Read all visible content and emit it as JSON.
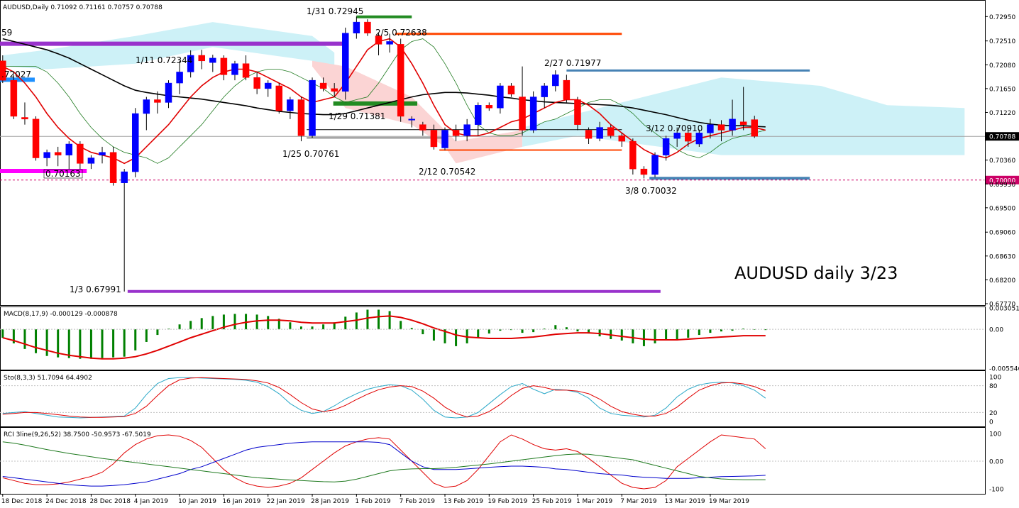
{
  "chart_data": {
    "type": "candlestick",
    "symbol": "AUDUSD",
    "timeframe": "Daily",
    "header": "AUDUSD,Daily  0.71092 0.71161 0.70757 0.70788",
    "watermark": "AUDUSD daily 3/23",
    "current_price": "0.70788",
    "ylim": [
      0.6777,
      0.7321
    ],
    "y_ticks": [
      "0.72950",
      "0.72510",
      "0.72080",
      "0.71650",
      "0.71220",
      "0.70788",
      "0.70360",
      "0.70000",
      "0.69930",
      "0.69500",
      "0.69060",
      "0.68630",
      "0.68200",
      "0.67770"
    ],
    "y_tick_values": [
      0.7295,
      0.7251,
      0.7208,
      0.7165,
      0.7122,
      0.70788,
      0.7036,
      0.7,
      0.6993,
      0.695,
      0.6906,
      0.6863,
      0.682,
      0.6777
    ],
    "x_labels": [
      "18 Dec 2018",
      "24 Dec 2018",
      "28 Dec 2018",
      "4 Jan 2019",
      "10 Jan 2019",
      "16 Jan 2019",
      "22 Jan 2019",
      "28 Jan 2019",
      "1 Feb 2019",
      "7 Feb 2019",
      "13 Feb 2019",
      "19 Feb 2019",
      "25 Feb 2019",
      "1 Mar 2019",
      "7 Mar 2019",
      "13 Mar 2019",
      "19 Mar 2019"
    ],
    "candles": [
      [
        0.7215,
        0.7225,
        0.7175,
        0.718
      ],
      [
        0.718,
        0.719,
        0.711,
        0.7115
      ],
      [
        0.7113,
        0.714,
        0.71,
        0.711
      ],
      [
        0.711,
        0.7115,
        0.7035,
        0.704
      ],
      [
        0.704,
        0.7055,
        0.7025,
        0.705
      ],
      [
        0.705,
        0.706,
        0.7025,
        0.7045
      ],
      [
        0.7045,
        0.707,
        0.702,
        0.7065
      ],
      [
        0.7065,
        0.707,
        0.702,
        0.703
      ],
      [
        0.703,
        0.7045,
        0.702,
        0.704
      ],
      [
        0.7045,
        0.706,
        0.703,
        0.705
      ],
      [
        0.705,
        0.706,
        0.699,
        0.6995
      ],
      [
        0.6995,
        0.702,
        0.6799,
        0.7015
      ],
      [
        0.7015,
        0.713,
        0.7005,
        0.712
      ],
      [
        0.712,
        0.715,
        0.709,
        0.7145
      ],
      [
        0.7145,
        0.716,
        0.712,
        0.714
      ],
      [
        0.714,
        0.718,
        0.713,
        0.7175
      ],
      [
        0.7175,
        0.7215,
        0.7155,
        0.7195
      ],
      [
        0.7195,
        0.7234,
        0.7185,
        0.7225
      ],
      [
        0.7225,
        0.7235,
        0.72,
        0.7215
      ],
      [
        0.7212,
        0.7226,
        0.7195,
        0.722
      ],
      [
        0.722,
        0.7225,
        0.718,
        0.719
      ],
      [
        0.719,
        0.7215,
        0.718,
        0.721
      ],
      [
        0.721,
        0.7225,
        0.718,
        0.7185
      ],
      [
        0.7185,
        0.7195,
        0.7155,
        0.7165
      ],
      [
        0.7165,
        0.718,
        0.715,
        0.7175
      ],
      [
        0.717,
        0.7175,
        0.712,
        0.7125
      ],
      [
        0.7125,
        0.715,
        0.711,
        0.7145
      ],
      [
        0.7145,
        0.715,
        0.707,
        0.708
      ],
      [
        0.708,
        0.7185,
        0.7076,
        0.718
      ],
      [
        0.7175,
        0.7185,
        0.716,
        0.7165
      ],
      [
        0.7165,
        0.7175,
        0.715,
        0.716
      ],
      [
        0.716,
        0.7275,
        0.7145,
        0.7265
      ],
      [
        0.7265,
        0.7295,
        0.7255,
        0.7285
      ],
      [
        0.7285,
        0.729,
        0.726,
        0.7265
      ],
      [
        0.726,
        0.7265,
        0.7225,
        0.7245
      ],
      [
        0.7245,
        0.7264,
        0.723,
        0.725
      ],
      [
        0.7245,
        0.7255,
        0.7105,
        0.7115
      ],
      [
        0.711,
        0.7115,
        0.7095,
        0.711
      ],
      [
        0.71,
        0.7105,
        0.708,
        0.709
      ],
      [
        0.709,
        0.71,
        0.7055,
        0.706
      ],
      [
        0.7058,
        0.7095,
        0.7054,
        0.709
      ],
      [
        0.709,
        0.71,
        0.707,
        0.708
      ],
      [
        0.708,
        0.711,
        0.707,
        0.71
      ],
      [
        0.71,
        0.714,
        0.708,
        0.7135
      ],
      [
        0.7135,
        0.714,
        0.7125,
        0.713
      ],
      [
        0.713,
        0.7175,
        0.712,
        0.717
      ],
      [
        0.717,
        0.7175,
        0.715,
        0.7155
      ],
      [
        0.715,
        0.7205,
        0.708,
        0.709
      ],
      [
        0.709,
        0.716,
        0.7085,
        0.715
      ],
      [
        0.715,
        0.7175,
        0.713,
        0.717
      ],
      [
        0.717,
        0.7198,
        0.716,
        0.719
      ],
      [
        0.718,
        0.719,
        0.714,
        0.7145
      ],
      [
        0.7145,
        0.715,
        0.709,
        0.71
      ],
      [
        0.709,
        0.7095,
        0.7065,
        0.7075
      ],
      [
        0.7075,
        0.7105,
        0.707,
        0.7095
      ],
      [
        0.7095,
        0.71,
        0.7075,
        0.708
      ],
      [
        0.708,
        0.7085,
        0.706,
        0.707
      ],
      [
        0.707,
        0.7075,
        0.701,
        0.702
      ],
      [
        0.702,
        0.7025,
        0.7003,
        0.701
      ],
      [
        0.701,
        0.705,
        0.7005,
        0.7045
      ],
      [
        0.7045,
        0.708,
        0.7035,
        0.7075
      ],
      [
        0.7075,
        0.7095,
        0.706,
        0.7085
      ],
      [
        0.7085,
        0.7095,
        0.706,
        0.707
      ],
      [
        0.7065,
        0.7091,
        0.706,
        0.7085
      ],
      [
        0.7085,
        0.711,
        0.7075,
        0.71
      ],
      [
        0.71,
        0.7108,
        0.707,
        0.709
      ],
      [
        0.709,
        0.7145,
        0.708,
        0.711
      ],
      [
        0.7105,
        0.7168,
        0.709,
        0.71
      ],
      [
        0.7109,
        0.7116,
        0.7076,
        0.7079
      ]
    ],
    "annotations": [
      {
        "text": "1/31 0.72945",
        "price": 0.72945
      },
      {
        "text": "2/5 0.72638",
        "price": 0.72638
      },
      {
        "text": "1/11 0.72344",
        "price": 0.72344
      },
      {
        "text": ".72027",
        "price": 0.72027
      },
      {
        "text": "2/27 0.71977",
        "price": 0.71977
      },
      {
        "text": "1/29 0.71381",
        "price": 0.71381
      },
      {
        "text": "3/12 0.70910",
        "price": 0.7091
      },
      {
        "text": "1/25 0.70761",
        "price": 0.70761
      },
      {
        "text": "0.70163",
        "price": 0.70163
      },
      {
        "text": "2/12 0.70542",
        "price": 0.70542
      },
      {
        "text": "3/8 0.70032",
        "price": 0.70032
      },
      {
        "text": "1/3 0.67991",
        "price": 0.67991
      },
      {
        "text": "59",
        "price": 0.7246
      }
    ],
    "levels": [
      {
        "price": 0.72945,
        "color": "#228b22"
      },
      {
        "price": 0.72638,
        "color": "#ff4500"
      },
      {
        "price": 0.7246,
        "color": "#9932cc"
      },
      {
        "price": 0.71977,
        "color": "#4682b4"
      },
      {
        "price": 0.7181,
        "color": "#1e90ff"
      },
      {
        "price": 0.71381,
        "color": "#228b22"
      },
      {
        "price": 0.7091,
        "color": "#000000"
      },
      {
        "price": 0.70761,
        "color": "#000000"
      },
      {
        "price": 0.70542,
        "color": "#ff4500"
      },
      {
        "price": 0.70163,
        "color": "#ff00ff"
      },
      {
        "price": 0.70032,
        "color": "#4682b4"
      },
      {
        "price": 0.67991,
        "color": "#9932cc"
      },
      {
        "price": 0.7,
        "color": "#cc0066"
      }
    ],
    "ma_fast": [
      0.7205,
      0.7195,
      0.7175,
      0.715,
      0.712,
      0.7095,
      0.7075,
      0.706,
      0.705,
      0.7045,
      0.704,
      0.703,
      0.704,
      0.706,
      0.708,
      0.71,
      0.7125,
      0.715,
      0.717,
      0.7185,
      0.7195,
      0.72,
      0.72,
      0.7195,
      0.7185,
      0.7175,
      0.7165,
      0.715,
      0.714,
      0.7145,
      0.715,
      0.7175,
      0.7205,
      0.7235,
      0.725,
      0.7255,
      0.724,
      0.721,
      0.7175,
      0.7135,
      0.71,
      0.7085,
      0.708,
      0.708,
      0.7085,
      0.7095,
      0.7105,
      0.711,
      0.712,
      0.713,
      0.714,
      0.7145,
      0.7145,
      0.7135,
      0.712,
      0.71,
      0.7085,
      0.707,
      0.7055,
      0.7045,
      0.704,
      0.705,
      0.7065,
      0.7075,
      0.708,
      0.7085,
      0.709,
      0.7095,
      0.7095,
      0.709
    ],
    "ma_slow": [
      0.7255,
      0.725,
      0.7245,
      0.724,
      0.7235,
      0.7228,
      0.722,
      0.721,
      0.72,
      0.719,
      0.718,
      0.717,
      0.7162,
      0.7158,
      0.7155,
      0.7152,
      0.715,
      0.7148,
      0.7146,
      0.7143,
      0.714,
      0.7137,
      0.7134,
      0.713,
      0.7127,
      0.7124,
      0.7122,
      0.712,
      0.7119,
      0.7118,
      0.7118,
      0.712,
      0.7125,
      0.713,
      0.7135,
      0.714,
      0.7145,
      0.715,
      0.7154,
      0.7156,
      0.7158,
      0.7158,
      0.7157,
      0.7155,
      0.7153,
      0.715,
      0.7148,
      0.7145,
      0.7143,
      0.7141,
      0.714,
      0.7139,
      0.7138,
      0.7137,
      0.7136,
      0.7135,
      0.7133,
      0.713,
      0.7126,
      0.7122,
      0.7118,
      0.7113,
      0.7108,
      0.7104,
      0.7101,
      0.7099,
      0.7098,
      0.7098,
      0.7097,
      0.7096
    ],
    "macd": {
      "label": "MACD(8,17,9) -0.000129 -0.000878",
      "ylim": [
        -0.005546,
        0.003051
      ],
      "y_ticks": [
        "0.003051",
        "0.00",
        "-0.005546"
      ],
      "y_tick_values": [
        0.003051,
        0.0,
        -0.005546
      ],
      "histogram": [
        -0.0012,
        -0.002,
        -0.0028,
        -0.0034,
        -0.0038,
        -0.004,
        -0.0041,
        -0.0042,
        -0.0042,
        -0.0041,
        -0.004,
        -0.0039,
        -0.003,
        -0.0018,
        -0.0008,
        0.0001,
        0.0007,
        0.0012,
        0.0016,
        0.0019,
        0.0021,
        0.0022,
        0.0022,
        0.0021,
        0.0019,
        0.0015,
        0.001,
        0.0004,
        0.0004,
        0.0007,
        0.001,
        0.0018,
        0.0024,
        0.0028,
        0.0028,
        0.0026,
        0.0012,
        0.0002,
        -0.0007,
        -0.0016,
        -0.002,
        -0.0024,
        -0.002,
        -0.0012,
        -0.0006,
        -0.0002,
        -0.0001,
        -0.0005,
        -0.0004,
        0.0001,
        0.0006,
        0.0003,
        -0.0003,
        -0.0006,
        -0.001,
        -0.0014,
        -0.0016,
        -0.002,
        -0.0024,
        -0.002,
        -0.0016,
        -0.0014,
        -0.0012,
        -0.0008,
        -0.0005,
        -0.0003,
        -0.0002,
        0.0001,
        0.0,
        -0.0001
      ],
      "signal": [
        -0.0012,
        -0.0016,
        -0.0021,
        -0.0026,
        -0.003,
        -0.0034,
        -0.0037,
        -0.0039,
        -0.0041,
        -0.0042,
        -0.0042,
        -0.0041,
        -0.0039,
        -0.0035,
        -0.003,
        -0.0024,
        -0.0018,
        -0.0012,
        -0.0007,
        -0.0002,
        0.0003,
        0.0007,
        0.001,
        0.0012,
        0.0013,
        0.0013,
        0.0012,
        0.001,
        0.0009,
        0.0009,
        0.0009,
        0.0011,
        0.0013,
        0.0016,
        0.0018,
        0.0019,
        0.0017,
        0.0013,
        0.0008,
        0.0002,
        -0.0003,
        -0.0008,
        -0.0011,
        -0.0012,
        -0.0013,
        -0.0013,
        -0.0013,
        -0.0012,
        -0.0011,
        -0.0009,
        -0.0007,
        -0.0006,
        -0.0005,
        -0.0005,
        -0.0006,
        -0.0008,
        -0.001,
        -0.0012,
        -0.0014,
        -0.0015,
        -0.0015,
        -0.0015,
        -0.0014,
        -0.0013,
        -0.0012,
        -0.0011,
        -0.001,
        -0.0009,
        -0.0009,
        -0.0009
      ]
    },
    "stochastic": {
      "label": "Sto(8,3,3) 51.7094 64.4902",
      "ylim": [
        0,
        100
      ],
      "y_ticks": [
        "100",
        "80",
        "20",
        "0"
      ],
      "y_tick_values": [
        100,
        80,
        20,
        0
      ],
      "main": [
        18,
        20,
        22,
        18,
        14,
        10,
        9,
        8,
        9,
        10,
        11,
        12,
        30,
        60,
        85,
        96,
        98,
        98,
        97,
        96,
        95,
        94,
        92,
        88,
        78,
        62,
        40,
        25,
        18,
        22,
        35,
        50,
        62,
        72,
        78,
        82,
        80,
        70,
        50,
        25,
        10,
        8,
        10,
        20,
        40,
        60,
        78,
        85,
        72,
        62,
        72,
        70,
        65,
        52,
        30,
        18,
        14,
        12,
        10,
        14,
        30,
        55,
        72,
        82,
        86,
        88,
        86,
        80,
        70,
        52
      ],
      "signal": [
        16,
        18,
        20,
        20,
        18,
        15,
        12,
        10,
        9,
        9,
        10,
        11,
        18,
        34,
        58,
        80,
        93,
        97,
        98,
        97,
        96,
        95,
        94,
        91,
        86,
        76,
        60,
        42,
        28,
        22,
        26,
        36,
        49,
        61,
        71,
        77,
        80,
        78,
        68,
        52,
        32,
        18,
        10,
        12,
        22,
        38,
        58,
        74,
        80,
        76,
        70,
        70,
        68,
        62,
        50,
        34,
        22,
        16,
        12,
        12,
        18,
        32,
        52,
        70,
        80,
        86,
        87,
        84,
        78,
        68
      ]
    },
    "rci": {
      "label": "RCI 3line(9,26,52) 38.7500 -50.9573 -67.5019",
      "ylim": [
        -100,
        100
      ],
      "y_ticks": [
        "100",
        "0.00",
        "-100"
      ],
      "y_tick_values": [
        100,
        0,
        -100
      ],
      "short": [
        -60,
        -70,
        -80,
        -85,
        -85,
        -82,
        -75,
        -65,
        -55,
        -40,
        -10,
        30,
        60,
        80,
        92,
        95,
        90,
        75,
        50,
        10,
        -30,
        -60,
        -80,
        -90,
        -95,
        -90,
        -80,
        -60,
        -30,
        0,
        30,
        55,
        70,
        80,
        85,
        80,
        40,
        0,
        -40,
        -80,
        -95,
        -90,
        -70,
        -30,
        20,
        70,
        95,
        80,
        60,
        45,
        40,
        45,
        35,
        10,
        -20,
        -50,
        -80,
        -95,
        -100,
        -95,
        -70,
        -20,
        10,
        40,
        70,
        95,
        90,
        85,
        80,
        45
      ],
      "mid": [
        -55,
        -60,
        -65,
        -70,
        -75,
        -80,
        -85,
        -88,
        -90,
        -90,
        -88,
        -85,
        -80,
        -75,
        -65,
        -55,
        -45,
        -30,
        -20,
        -5,
        10,
        25,
        40,
        50,
        55,
        60,
        65,
        68,
        70,
        70,
        70,
        70,
        70,
        70,
        68,
        60,
        30,
        0,
        -20,
        -30,
        -30,
        -30,
        -28,
        -25,
        -22,
        -20,
        -18,
        -18,
        -20,
        -22,
        -28,
        -30,
        -35,
        -40,
        -45,
        -48,
        -50,
        -55,
        -58,
        -60,
        -62,
        -62,
        -62,
        -60,
        -58,
        -56,
        -55,
        -54,
        -53,
        -51
      ],
      "long": [
        70,
        65,
        58,
        50,
        42,
        35,
        28,
        22,
        16,
        10,
        5,
        0,
        -5,
        -10,
        -15,
        -20,
        -25,
        -30,
        -35,
        -40,
        -45,
        -50,
        -55,
        -60,
        -62,
        -65,
        -68,
        -70,
        -72,
        -74,
        -75,
        -72,
        -65,
        -55,
        -45,
        -35,
        -30,
        -28,
        -27,
        -27,
        -25,
        -22,
        -18,
        -14,
        -10,
        -5,
        0,
        5,
        10,
        15,
        20,
        24,
        26,
        25,
        20,
        15,
        10,
        5,
        -5,
        -15,
        -25,
        -35,
        -45,
        -55,
        -60,
        -64,
        -66,
        -67,
        -67,
        -67
      ]
    }
  }
}
